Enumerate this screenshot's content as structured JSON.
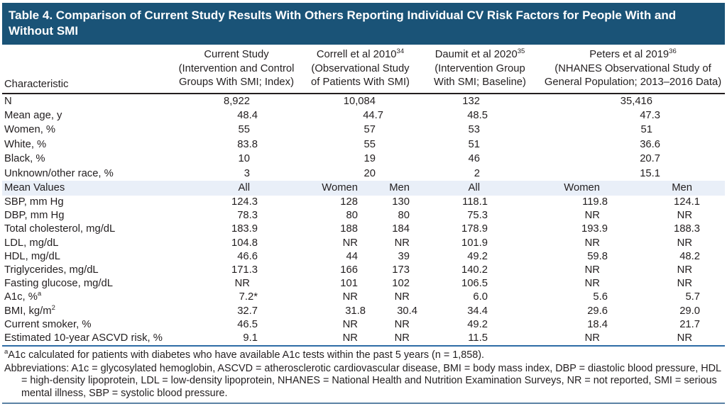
{
  "colors": {
    "title_bar_bg": "#1A5377",
    "title_text": "#FFFFFF",
    "body_text": "#231F20",
    "band_bg": "#E9EFF8",
    "header_rule": "#231F20",
    "table_end_rule": "#2E6CA6",
    "bottom_rule": "#5B82A4"
  },
  "table": {
    "title_lines": [
      "Table 4. Comparison of Current Study Results With Others Reporting Individual CV Risk Factors for People With and",
      "Without SMI"
    ],
    "columns": {
      "characteristic": "Characteristic",
      "current_study": {
        "lines": [
          "Current Study",
          "(Intervention and Control",
          "Groups With SMI; Index)"
        ]
      },
      "correll": {
        "name": "Correll et al 2010",
        "ref": "34",
        "lines": [
          "(Observational Study",
          "of Patients With SMI)"
        ]
      },
      "daumit": {
        "name": "Daumit et al 2020",
        "ref": "35",
        "lines": [
          "(Intervention Group",
          "With SMI; Baseline)"
        ]
      },
      "peters": {
        "name": "Peters et al 2019",
        "ref": "36",
        "lines": [
          "(NHANES Observational Study of",
          "General Population; 2013–2016 Data)"
        ]
      }
    },
    "demographic_rows": [
      {
        "label": "N",
        "current": "8,922",
        "correll": "10,084",
        "daumit": "132",
        "peters": "35,416"
      },
      {
        "label": "Mean age, y",
        "current": "48.4",
        "correll": "44.7",
        "daumit": "48.5",
        "peters": "47.3"
      },
      {
        "label": "Women, %",
        "current": "55",
        "correll": "57",
        "daumit": "53",
        "peters": "51"
      },
      {
        "label": "White, %",
        "current": "83.8",
        "correll": "55",
        "daumit": "51",
        "peters": "36.6"
      },
      {
        "label": "Black, %",
        "current": "10",
        "correll": "19",
        "daumit": "46",
        "peters": "20.7"
      },
      {
        "label": "Unknown/other race, %",
        "current": "3",
        "correll": "20",
        "daumit": "2",
        "peters": "15.1"
      }
    ],
    "mean_values_band": {
      "label": "Mean Values",
      "subcols": [
        "All",
        "Women",
        "Men",
        "All",
        "Women",
        "Men"
      ]
    },
    "mean_rows": [
      {
        "label": "SBP, mm Hg",
        "values": [
          "124.3",
          "128",
          "130",
          "118.1",
          "119.8",
          "124.1"
        ]
      },
      {
        "label": "DBP, mm Hg",
        "values": [
          "78.3",
          "80",
          "80",
          "75.3",
          "NR",
          "NR"
        ]
      },
      {
        "label": "Total cholesterol, mg/dL",
        "values": [
          "183.9",
          "188",
          "184",
          "178.9",
          "193.9",
          "188.3"
        ]
      },
      {
        "label": "LDL, mg/dL",
        "values": [
          "104.8",
          "NR",
          "NR",
          "101.9",
          "NR",
          "NR"
        ]
      },
      {
        "label": "HDL, mg/dL",
        "values": [
          "46.6",
          "44",
          "39",
          "49.2",
          "59.8",
          "48.2"
        ]
      },
      {
        "label": "Triglycerides, mg/dL",
        "values": [
          "171.3",
          "166",
          "173",
          "140.2",
          "NR",
          "NR"
        ]
      },
      {
        "label": "Fasting glucose, mg/dL",
        "values": [
          "NR",
          "101",
          "102",
          "106.5",
          "NR",
          "NR"
        ]
      },
      {
        "label": "A1c, %",
        "label_sup": "a",
        "values": [
          "7.2*",
          "NR",
          "NR",
          "6.0",
          "5.6",
          "5.7"
        ]
      },
      {
        "label": "BMI, kg/m",
        "label_sup": "2",
        "values": [
          "32.7",
          "31.8",
          "30.4",
          "34.4",
          "29.6",
          "29.0"
        ]
      },
      {
        "label": "Current smoker, %",
        "values": [
          "46.5",
          "NR",
          "NR",
          "49.2",
          "18.4",
          "21.7"
        ]
      },
      {
        "label": "Estimated 10-year ASCVD risk, %",
        "values": [
          "9.1",
          "NR",
          "NR",
          "11.5",
          "NR",
          "NR"
        ]
      }
    ]
  },
  "footnotes": {
    "a_marker": "a",
    "a_text": "A1c calculated for patients with diabetes who have available A1c tests within the past 5 years (n = 1,858).",
    "abbreviations": "Abbreviations: A1c = glycosylated hemoglobin, ASCVD = atherosclerotic cardiovascular disease, BMI = body mass index, DBP = diastolic blood pressure, HDL = high-density lipoprotein, LDL = low-density lipoprotein, NHANES = National Health and Nutrition Examination Surveys, NR = not reported, SMI = serious mental illness, SBP = systolic blood pressure."
  }
}
